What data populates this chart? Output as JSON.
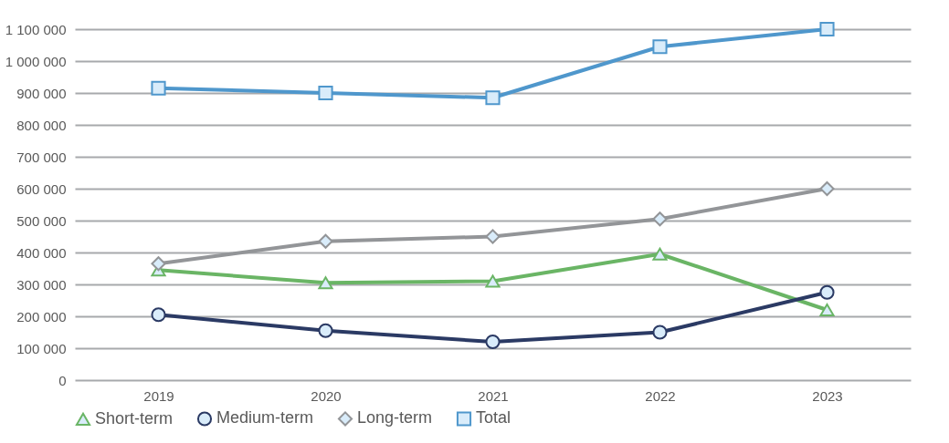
{
  "chart_data": {
    "type": "line",
    "categories": [
      "2019",
      "2020",
      "2021",
      "2022",
      "2023"
    ],
    "series": [
      {
        "name": "Short-term",
        "color": "#6ab565",
        "marker": "triangle",
        "values": [
          345000,
          305000,
          310000,
          395000,
          220000
        ]
      },
      {
        "name": "Medium-term",
        "color": "#2b3a64",
        "marker": "circle",
        "values": [
          205000,
          155000,
          120000,
          150000,
          275000
        ]
      },
      {
        "name": "Long-term",
        "color": "#939598",
        "marker": "diamond",
        "values": [
          365000,
          435000,
          450000,
          505000,
          600000
        ]
      },
      {
        "name": "Total",
        "color": "#4f97cc",
        "marker": "square",
        "values": [
          915000,
          900000,
          885000,
          1045000,
          1100000
        ]
      }
    ],
    "ylim": [
      0,
      1100000
    ],
    "yticks": [
      0,
      {
        "value": 100000,
        "label": "100 000"
      },
      {
        "value": 200000,
        "label": "200 000"
      },
      {
        "value": 300000,
        "label": "300 000"
      },
      {
        "value": 400000,
        "label": "400 000"
      },
      {
        "value": 500000,
        "label": "500 000"
      },
      {
        "value": 600000,
        "label": "600 000"
      },
      {
        "value": 700000,
        "label": "700 000"
      },
      {
        "value": 800000,
        "label": "800 000"
      },
      {
        "value": 900000,
        "label": "900 000"
      },
      {
        "value": 1000000,
        "label": "1 000 000"
      },
      {
        "value": 1100000,
        "label": "1 100 000"
      }
    ],
    "grid": "y",
    "legend": "bottom"
  }
}
